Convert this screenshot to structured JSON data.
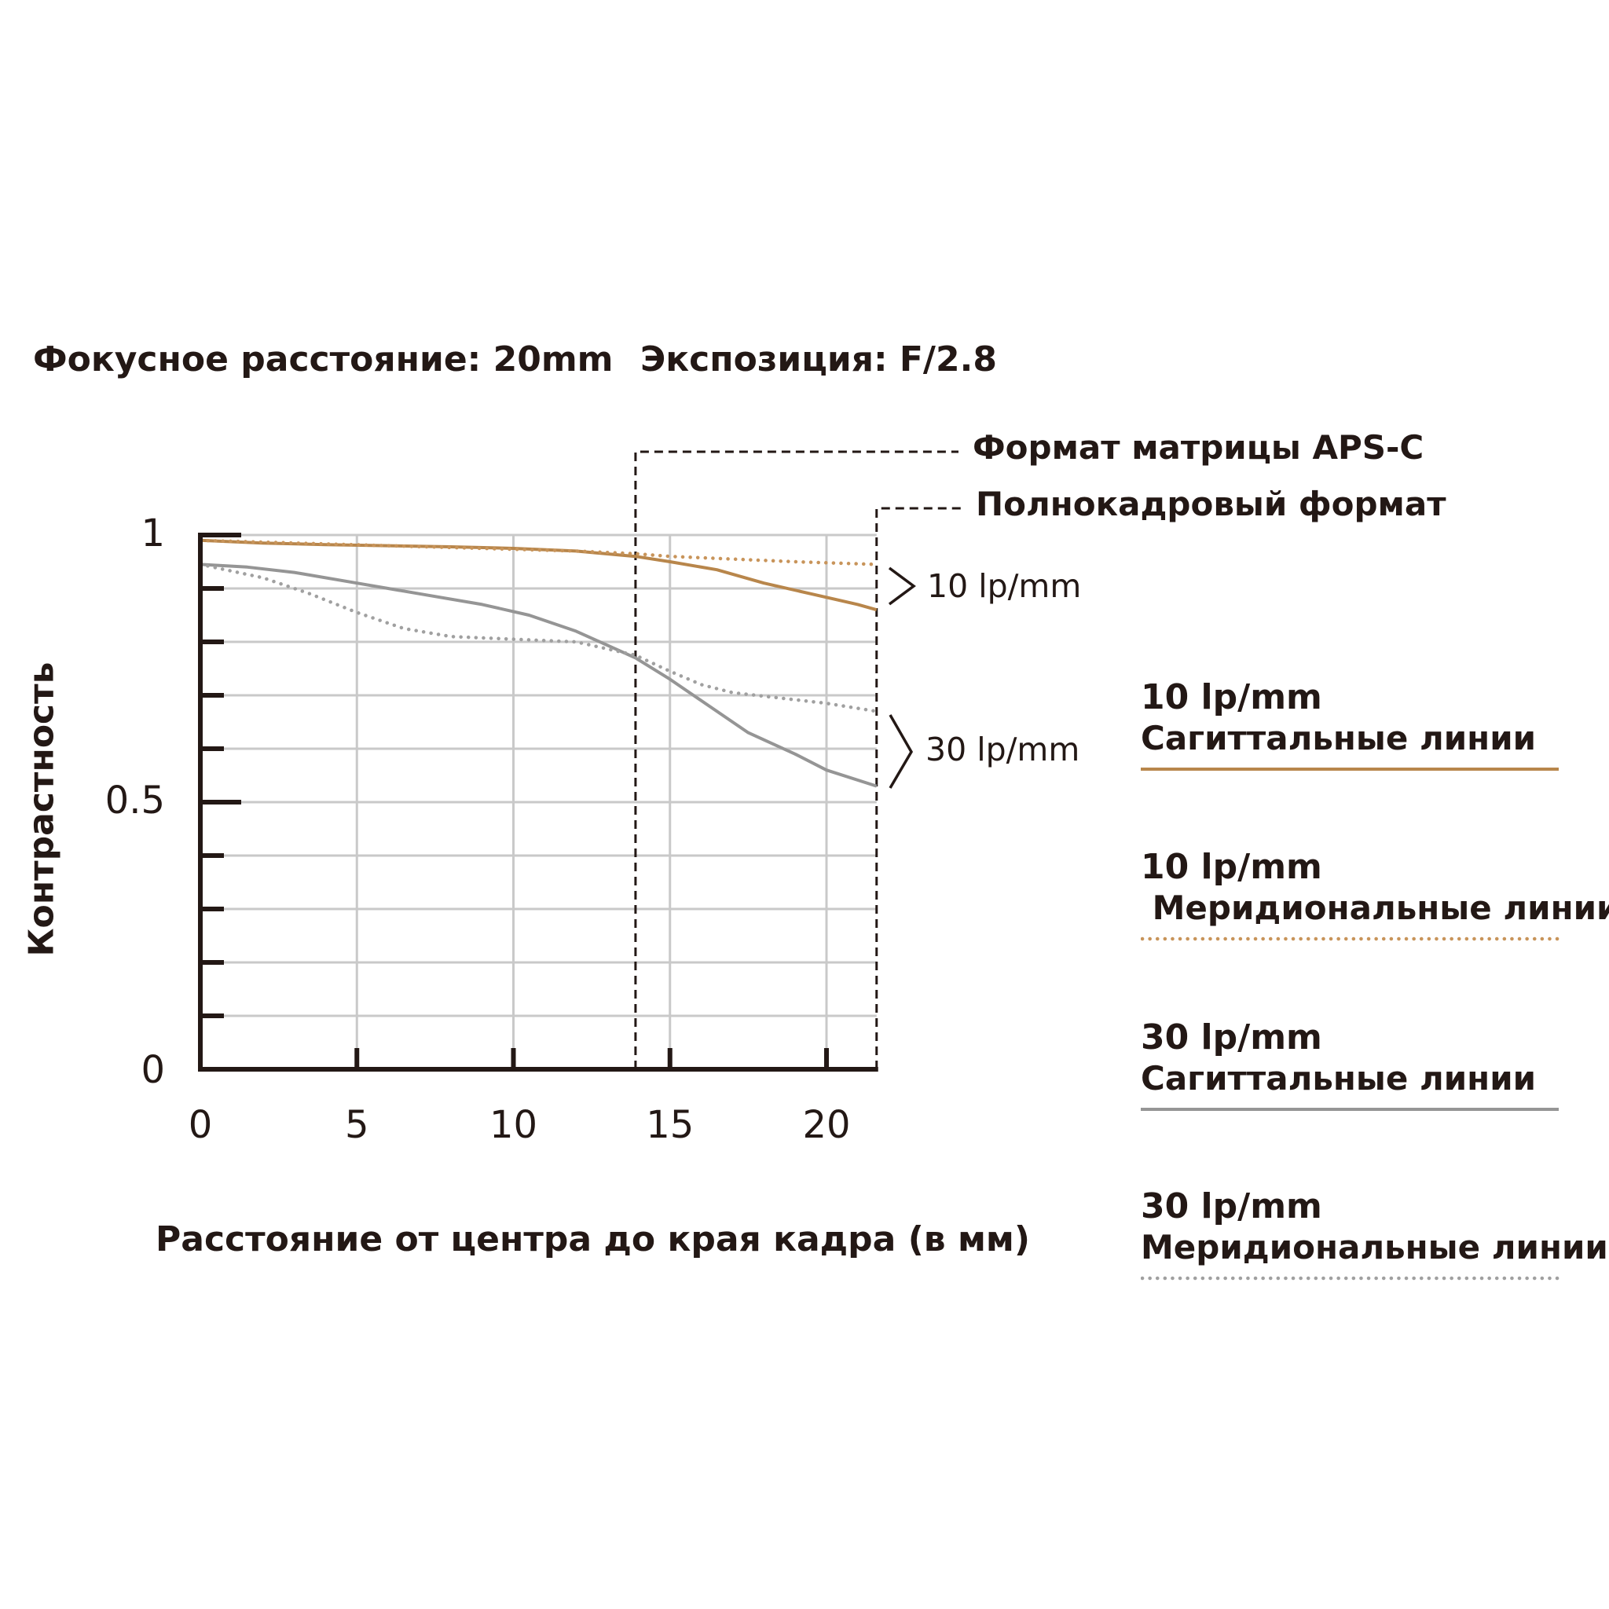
{
  "header": {
    "focal_length": "Фокусное расстояние: 20mm",
    "exposure": "Экспозиция: F/2.8"
  },
  "formats": {
    "apsc": "Формат матрицы APS-C",
    "full_frame": "Полнокадровый формат"
  },
  "group_labels": {
    "lp10": "10 lp/mm",
    "lp30": "30 lp/mm"
  },
  "legend": [
    {
      "lp": "10 lp/mm",
      "name": "Сагиттальные линии",
      "color": "#b8864b",
      "style": "solid"
    },
    {
      "lp": "10 lp/mm",
      "name": " Меридиональные линии",
      "color": "#c8945a",
      "style": "dotted"
    },
    {
      "lp": "30 lp/mm",
      "name": "Сагиттальные линии",
      "color": "#959595",
      "style": "solid"
    },
    {
      "lp": "30 lp/mm",
      "name": "Меридиональные линии",
      "color": "#a0a0a0",
      "style": "dotted"
    }
  ],
  "chart_data": {
    "type": "line",
    "xlabel": "Расстояние от центра до края кадра (в мм)",
    "ylabel": "Контрастность",
    "xlim": [
      0,
      21.6
    ],
    "ylim": [
      0,
      1
    ],
    "x_ticks": [
      "0",
      "5",
      "10",
      "15",
      "20"
    ],
    "y_ticks": [
      "0",
      "0.5",
      "1"
    ],
    "grid": true,
    "apsc_edge_mm": 13.9,
    "full_frame_edge_mm": 21.6,
    "series": [
      {
        "name": "10 lp/mm Сагиттальные линии",
        "color": "#b8864b",
        "dashed": false,
        "x": [
          0,
          2,
          4,
          6,
          8,
          10,
          12,
          13.9,
          15,
          16.5,
          18,
          19.5,
          21,
          21.6
        ],
        "y": [
          0.99,
          0.985,
          0.982,
          0.98,
          0.978,
          0.975,
          0.97,
          0.96,
          0.95,
          0.935,
          0.91,
          0.89,
          0.87,
          0.86
        ]
      },
      {
        "name": "10 lp/mm Меридиональные линии",
        "color": "#c8945a",
        "dashed": true,
        "x": [
          0,
          3,
          6,
          9,
          12,
          13.9,
          15,
          17,
          19,
          21.6
        ],
        "y": [
          0.99,
          0.985,
          0.98,
          0.975,
          0.97,
          0.965,
          0.96,
          0.955,
          0.95,
          0.945
        ]
      },
      {
        "name": "30 lp/mm Сагиттальные линии",
        "color": "#959595",
        "dashed": false,
        "x": [
          0,
          1.5,
          3,
          5,
          7,
          9,
          10.5,
          12,
          13.9,
          15,
          16.5,
          17.5,
          19,
          20,
          21.6
        ],
        "y": [
          0.945,
          0.94,
          0.93,
          0.91,
          0.89,
          0.87,
          0.85,
          0.82,
          0.77,
          0.73,
          0.67,
          0.63,
          0.59,
          0.56,
          0.53
        ]
      },
      {
        "name": "30 lp/mm Меридиональные линии",
        "color": "#a0a0a0",
        "dashed": true,
        "x": [
          0,
          2,
          3.5,
          5,
          6.5,
          8,
          10,
          12,
          13.9,
          15,
          16,
          17,
          18.5,
          20,
          21.6
        ],
        "y": [
          0.945,
          0.92,
          0.89,
          0.855,
          0.825,
          0.81,
          0.805,
          0.8,
          0.775,
          0.745,
          0.72,
          0.705,
          0.695,
          0.685,
          0.67
        ]
      }
    ]
  }
}
